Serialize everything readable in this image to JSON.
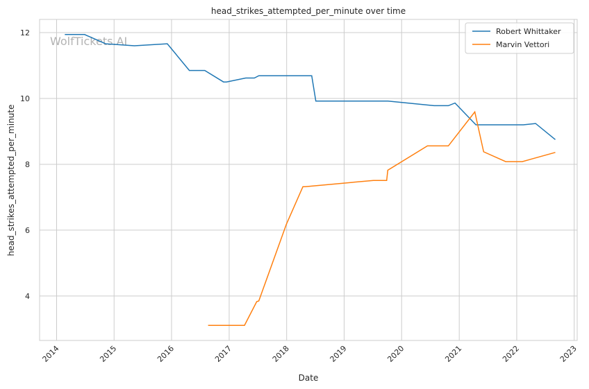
{
  "chart_data": {
    "type": "line",
    "title": "head_strikes_attempted_per_minute over time",
    "xlabel": "Date",
    "ylabel": "head_strikes_attempted_per_minute",
    "watermark": "WolfTickets.AI",
    "x_ticks": [
      "2014",
      "2015",
      "2016",
      "2017",
      "2018",
      "2019",
      "2020",
      "2021",
      "2022",
      "2023"
    ],
    "y_ticks": [
      "4",
      "6",
      "8",
      "10",
      "12"
    ],
    "xlim": [
      "2013-09-15",
      "2023-01-20"
    ],
    "ylim": [
      2.65,
      12.4
    ],
    "grid": true,
    "legend_position": "top-right",
    "series": [
      {
        "name": "Robert Whittaker",
        "color": "#1f77b4",
        "points": [
          [
            "2014-02-22",
            11.94
          ],
          [
            "2014-06-28",
            11.94
          ],
          [
            "2014-11-08",
            11.66
          ],
          [
            "2015-05-10",
            11.6
          ],
          [
            "2015-12-05",
            11.66
          ],
          [
            "2016-04-23",
            10.85
          ],
          [
            "2016-07-30",
            10.85
          ],
          [
            "2016-11-26",
            10.5
          ],
          [
            "2016-12-15",
            10.5
          ],
          [
            "2017-04-16",
            10.62
          ],
          [
            "2017-06-10",
            10.62
          ],
          [
            "2017-07-08",
            10.69
          ],
          [
            "2018-06-09",
            10.69
          ],
          [
            "2018-07-05",
            9.92
          ],
          [
            "2019-10-06",
            9.92
          ],
          [
            "2020-07-25",
            9.78
          ],
          [
            "2020-10-24",
            9.78
          ],
          [
            "2020-12-05",
            9.86
          ],
          [
            "2021-04-17",
            9.2
          ],
          [
            "2022-02-12",
            9.2
          ],
          [
            "2022-05-01",
            9.24
          ],
          [
            "2022-09-03",
            8.75
          ]
        ]
      },
      {
        "name": "Marvin Vettori",
        "color": "#ff7f0e",
        "points": [
          [
            "2016-08-20",
            3.11
          ],
          [
            "2017-04-08",
            3.11
          ],
          [
            "2017-06-25",
            3.83
          ],
          [
            "2017-07-08",
            3.85
          ],
          [
            "2017-12-30",
            6.18
          ],
          [
            "2018-04-14",
            7.32
          ],
          [
            "2018-04-28",
            7.32
          ],
          [
            "2019-07-06",
            7.51
          ],
          [
            "2019-09-28",
            7.51
          ],
          [
            "2019-10-05",
            7.82
          ],
          [
            "2020-06-13",
            8.56
          ],
          [
            "2020-10-24",
            8.56
          ],
          [
            "2021-04-10",
            9.59
          ],
          [
            "2021-06-05",
            8.38
          ],
          [
            "2021-10-23",
            8.08
          ],
          [
            "2022-02-05",
            8.08
          ],
          [
            "2022-09-03",
            8.36
          ]
        ]
      }
    ]
  }
}
